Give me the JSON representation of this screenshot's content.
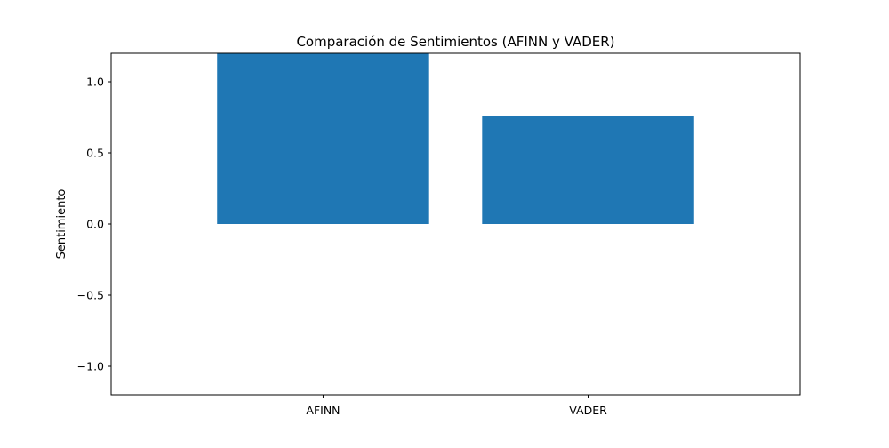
{
  "chart_data": {
    "type": "bar",
    "title": "Comparación de Sentimientos (AFINN y VADER)",
    "xlabel": "",
    "ylabel": "Sentimiento",
    "categories": [
      "AFINN",
      "VADER"
    ],
    "values": [
      1.2,
      0.76
    ],
    "ylim": [
      -1.2,
      1.2
    ],
    "yticks": [
      1.0,
      0.5,
      0.0,
      -0.5,
      -1.0
    ],
    "ytick_labels": [
      "1.0",
      "0.5",
      "0.0",
      "−0.5",
      "−1.0"
    ],
    "grid": false,
    "legend": "none",
    "bar_color": "#1f77b4"
  }
}
